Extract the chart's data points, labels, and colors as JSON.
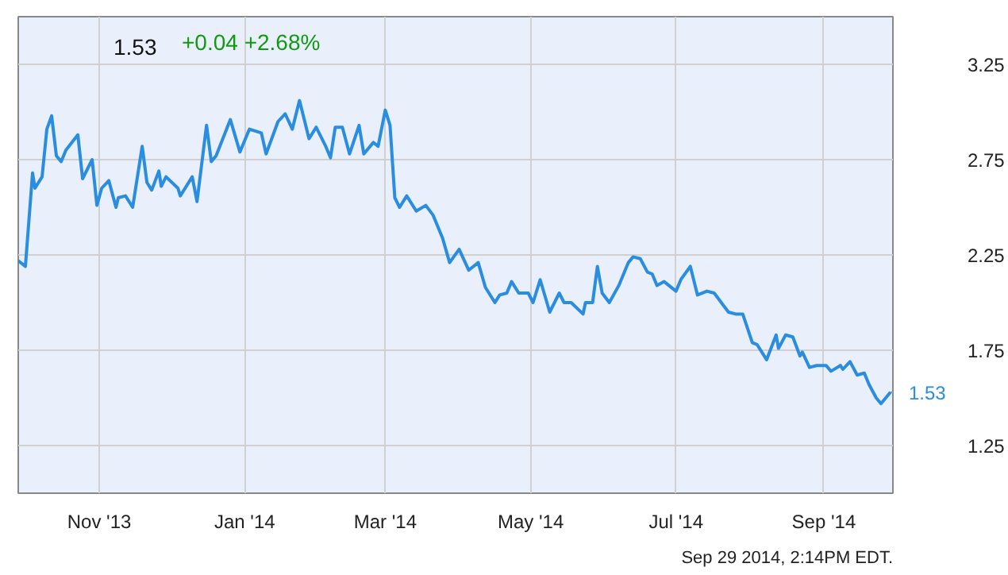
{
  "chart_data": {
    "type": "line",
    "title": "1.53",
    "subtitle": "+0.04 +2.68%",
    "x": [
      "2013-09-28",
      "2013-10-01",
      "2013-10-04",
      "2013-10-05",
      "2013-10-08",
      "2013-10-10",
      "2013-10-12",
      "2013-10-14",
      "2013-10-16",
      "2013-10-18",
      "2013-10-23",
      "2013-10-25",
      "2013-10-29",
      "2013-10-31",
      "2013-11-02",
      "2013-11-05",
      "2013-11-08",
      "2013-11-09",
      "2013-11-12",
      "2013-11-15",
      "2013-11-19",
      "2013-11-21",
      "2013-11-23",
      "2013-11-26",
      "2013-11-27",
      "2013-11-29",
      "2013-12-04",
      "2013-12-05",
      "2013-12-10",
      "2013-12-12",
      "2013-12-16",
      "2013-12-18",
      "2013-12-20",
      "2013-12-26",
      "2013-12-30",
      "2014-01-03",
      "2014-01-08",
      "2014-01-10",
      "2014-01-15",
      "2014-01-18",
      "2014-01-21",
      "2014-01-24",
      "2014-01-28",
      "2014-01-31",
      "2014-02-04",
      "2014-02-06",
      "2014-02-08",
      "2014-02-11",
      "2014-02-14",
      "2014-02-18",
      "2014-02-20",
      "2014-02-24",
      "2014-02-26",
      "2014-03-01",
      "2014-03-03",
      "2014-03-05",
      "2014-03-07",
      "2014-03-10",
      "2014-03-14",
      "2014-03-18",
      "2014-03-21",
      "2014-03-25",
      "2014-03-28",
      "2014-04-01",
      "2014-04-05",
      "2014-04-09",
      "2014-04-12",
      "2014-04-16",
      "2014-04-18",
      "2014-04-21",
      "2014-04-23",
      "2014-04-26",
      "2014-04-30",
      "2014-05-02",
      "2014-05-05",
      "2014-05-09",
      "2014-05-13",
      "2014-05-15",
      "2014-05-18",
      "2014-05-23",
      "2014-05-24",
      "2014-05-27",
      "2014-05-29",
      "2014-05-31",
      "2014-06-03",
      "2014-06-07",
      "2014-06-11",
      "2014-06-13",
      "2014-06-16",
      "2014-06-19",
      "2014-06-21",
      "2014-06-23",
      "2014-06-26",
      "2014-07-01",
      "2014-07-03",
      "2014-07-07",
      "2014-07-10",
      "2014-07-14",
      "2014-07-17",
      "2014-07-23",
      "2014-07-26",
      "2014-07-29",
      "2014-08-02",
      "2014-08-04",
      "2014-08-06",
      "2014-08-08",
      "2014-08-12",
      "2014-08-13",
      "2014-08-16",
      "2014-08-19",
      "2014-08-22",
      "2014-08-23",
      "2014-08-26",
      "2014-08-29",
      "2014-09-02",
      "2014-09-04",
      "2014-09-08",
      "2014-09-09",
      "2014-09-12",
      "2014-09-15",
      "2014-09-18",
      "2014-09-20",
      "2014-09-23",
      "2014-09-25",
      "2014-09-27",
      "2014-09-29"
    ],
    "series": [
      {
        "color": "#2a8de0",
        "values": [
          2.22,
          2.19,
          2.68,
          2.6,
          2.66,
          2.91,
          2.98,
          2.77,
          2.74,
          2.8,
          2.88,
          2.65,
          2.75,
          2.51,
          2.6,
          2.64,
          2.5,
          2.55,
          2.56,
          2.5,
          2.82,
          2.63,
          2.59,
          2.69,
          2.61,
          2.66,
          2.6,
          2.56,
          2.66,
          2.53,
          2.93,
          2.74,
          2.77,
          2.96,
          2.79,
          2.91,
          2.89,
          2.78,
          2.95,
          2.99,
          2.91,
          3.06,
          2.86,
          2.92,
          2.82,
          2.76,
          2.92,
          2.92,
          2.78,
          2.93,
          2.78,
          2.84,
          2.82,
          3.01,
          2.93,
          2.55,
          2.5,
          2.56,
          2.48,
          2.51,
          2.46,
          2.34,
          2.21,
          2.28,
          2.17,
          2.21,
          2.08,
          2.0,
          2.04,
          2.05,
          2.11,
          2.05,
          2.05,
          2.0,
          2.12,
          1.95,
          2.05,
          2.0,
          2.0,
          1.94,
          2.0,
          2.0,
          2.19,
          2.05,
          2.0,
          2.09,
          2.21,
          2.24,
          2.23,
          2.16,
          2.15,
          2.09,
          2.11,
          2.06,
          2.12,
          2.19,
          2.04,
          2.06,
          2.05,
          1.95,
          1.94,
          1.94,
          1.79,
          1.78,
          1.74,
          1.7,
          1.83,
          1.76,
          1.83,
          1.82,
          1.72,
          1.74,
          1.66,
          1.67,
          1.67,
          1.64,
          1.67,
          1.65,
          1.69,
          1.62,
          1.63,
          1.57,
          1.5,
          1.47,
          1.5,
          1.53
        ]
      }
    ],
    "xlim": [
      "2013-09-28",
      "2014-09-30"
    ],
    "xticks": [
      {
        "value": "2013-11-01",
        "label": "Nov '13"
      },
      {
        "value": "2014-01-01",
        "label": "Jan '14"
      },
      {
        "value": "2014-03-01",
        "label": "Mar '14"
      },
      {
        "value": "2014-05-01",
        "label": "May '14"
      },
      {
        "value": "2014-07-01",
        "label": "Jul '14"
      },
      {
        "value": "2014-09-01",
        "label": "Sep '14"
      }
    ],
    "ylim": [
      1.0,
      3.5
    ],
    "yticks": [
      1.25,
      1.75,
      2.25,
      2.75,
      3.25
    ],
    "grid": true,
    "marker": "none",
    "line_style": "solid",
    "annotations": [
      {
        "text": "1.53",
        "x": "2014-09-29",
        "y": 1.53
      },
      "Sep 29 2014, 2:14PM EDT."
    ]
  }
}
